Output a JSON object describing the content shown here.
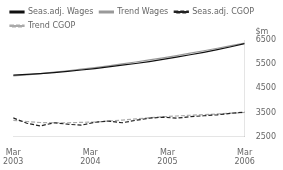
{
  "chart_data": {
    "type": "line",
    "ylabel": "$m",
    "x": [
      0,
      0.7058823529411765,
      1.411764705882353,
      2.1176470588235294,
      2.823529411764706,
      3.5294117647058822,
      4.235294117647059,
      4.9411764705882355,
      5.647058823529412,
      6.352941176470588,
      7.0588235294117645,
      7.764705882352941,
      8.470588235294118,
      9.176470588235293,
      9.882352941176471,
      10.588235294117647,
      11.294117647058824,
      12
    ],
    "xlim": [
      0,
      12
    ],
    "xticks": [
      {
        "value": 0,
        "label": "Mar\n2003"
      },
      {
        "value": 4,
        "label": "Mar\n2004"
      },
      {
        "value": 8,
        "label": "Mar\n2005"
      },
      {
        "value": 12,
        "label": "Mar\n2006"
      }
    ],
    "ylim": [
      2500,
      6500
    ],
    "yticks": [
      2500,
      3500,
      4500,
      5500,
      6500
    ],
    "grid": false,
    "legend": "top",
    "series": [
      {
        "name": "Seas.adj. Wages",
        "color": "#111111",
        "line_style": "solid",
        "values": [
          5050,
          5080,
          5110,
          5150,
          5200,
          5260,
          5320,
          5390,
          5460,
          5530,
          5610,
          5700,
          5790,
          5890,
          5990,
          6100,
          6220,
          6350
        ]
      },
      {
        "name": "Trend Wages",
        "color": "#999999",
        "line_style": "solid",
        "values": [
          5020,
          5060,
          5110,
          5170,
          5230,
          5295,
          5360,
          5430,
          5510,
          5590,
          5675,
          5765,
          5855,
          5955,
          6055,
          6160,
          6265,
          6370
        ]
      },
      {
        "name": "Seas.adj. CGOP",
        "color": "#222222",
        "line_style": "dashed",
        "values": [
          3280,
          3060,
          2950,
          3080,
          3020,
          2980,
          3100,
          3150,
          3080,
          3180,
          3270,
          3310,
          3270,
          3330,
          3370,
          3410,
          3470,
          3520
        ]
      },
      {
        "name": "Trend CGOP",
        "color": "#aaaaaa",
        "line_style": "dashed",
        "values": [
          3180,
          3130,
          3090,
          3080,
          3080,
          3095,
          3115,
          3150,
          3190,
          3240,
          3285,
          3330,
          3360,
          3390,
          3415,
          3445,
          3475,
          3505
        ]
      }
    ]
  }
}
